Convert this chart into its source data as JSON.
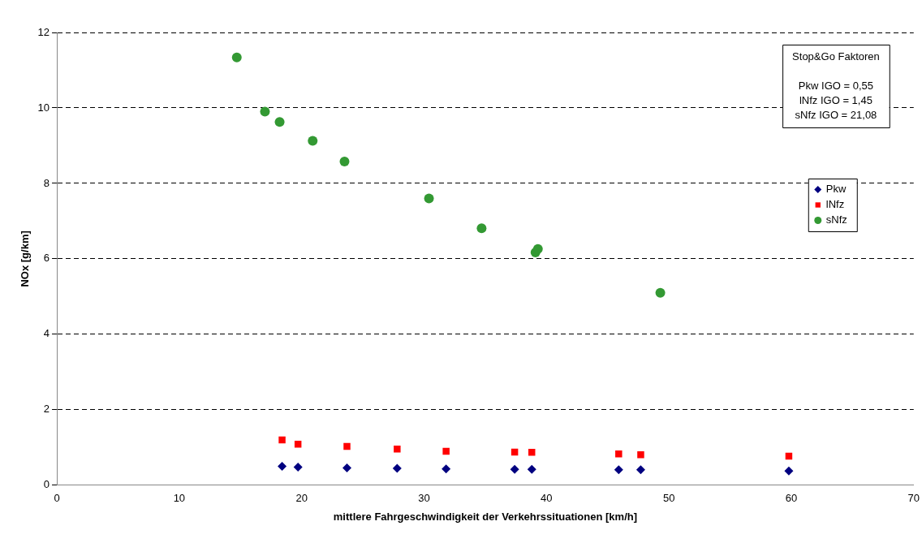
{
  "chart_data": {
    "type": "scatter",
    "xlabel": "mittlere Fahrgeschwindigkeit der Verkehrssituationen [km/h]",
    "ylabel": "NOx [g/km]",
    "xlim": [
      0,
      70
    ],
    "xticks": [
      0,
      10,
      20,
      30,
      40,
      50,
      60,
      70
    ],
    "ylim": [
      0,
      12
    ],
    "yticks": [
      0,
      2,
      4,
      6,
      8,
      10,
      12
    ],
    "grid": "y",
    "legend": "right",
    "annotations": [
      "Stop&Go Faktoren\n\nPkw IGO = 0,55\nlNfz IGO = 1,45\nsNfz IGO = 21,08"
    ],
    "series": [
      {
        "name": "Pkw",
        "color": "#000080",
        "marker": "diamond",
        "x": [
          18.4,
          19.7,
          23.7,
          27.8,
          31.8,
          37.4,
          38.8,
          45.9,
          47.7,
          59.8
        ],
        "values": [
          0.5,
          0.48,
          0.46,
          0.45,
          0.43,
          0.42,
          0.42,
          0.41,
          0.41,
          0.38
        ]
      },
      {
        "name": "lNfz",
        "color": "#ff0000",
        "marker": "square",
        "x": [
          18.4,
          19.7,
          23.7,
          27.8,
          31.8,
          37.4,
          38.8,
          45.9,
          47.7,
          59.8
        ],
        "values": [
          1.2,
          1.09,
          1.03,
          0.96,
          0.9,
          0.88,
          0.87,
          0.83,
          0.81,
          0.77
        ]
      },
      {
        "name": "sNfz",
        "color": "#339933",
        "marker": "circle",
        "x": [
          14.7,
          17.0,
          18.2,
          20.9,
          23.5,
          30.4,
          34.7,
          39.1,
          39.3,
          49.3
        ],
        "values": [
          11.34,
          9.9,
          9.63,
          9.13,
          8.58,
          7.6,
          6.81,
          6.17,
          6.26,
          5.1
        ]
      }
    ]
  }
}
